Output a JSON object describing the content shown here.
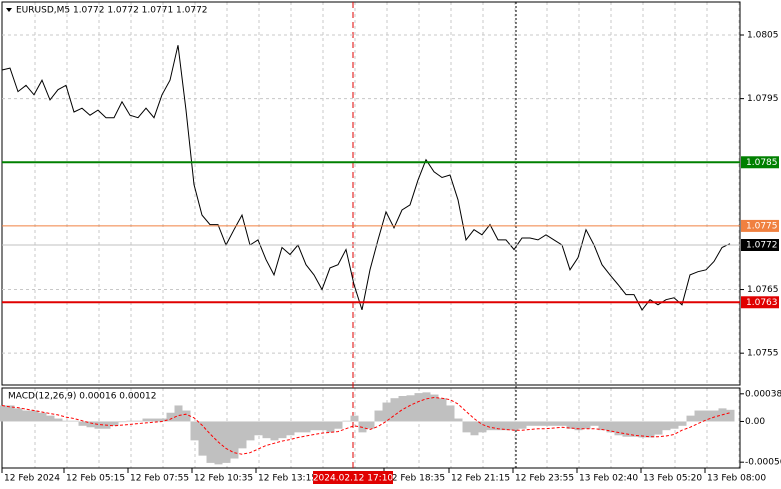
{
  "chart_data": [
    {
      "type": "line",
      "title": "EURUSD,M5  1.0772 1.0772 1.0771 1.0772",
      "color": "#000000",
      "values": [
        1.07995,
        1.07998,
        1.07961,
        1.07971,
        1.07956,
        1.07979,
        1.07948,
        1.07964,
        1.07971,
        1.07929,
        1.07935,
        1.07924,
        1.07932,
        1.0792,
        1.0792,
        1.07945,
        1.07924,
        1.0792,
        1.07935,
        1.0792,
        1.07956,
        1.07979,
        1.08034,
        1.07932,
        1.07815,
        1.07767,
        1.07752,
        1.07752,
        1.0772,
        1.07744,
        1.07767,
        1.0772,
        1.07728,
        1.07697,
        1.07673,
        1.07716,
        1.07705,
        1.0772,
        1.07689,
        1.07673,
        1.0765,
        1.07684,
        1.07689,
        1.07713,
        1.07658,
        1.07618,
        1.07681,
        1.07728,
        1.07772,
        1.07747,
        1.07775,
        1.07783,
        1.07822,
        1.07854,
        1.07835,
        1.07826,
        1.0783,
        1.07791,
        1.07728,
        1.07744,
        1.07736,
        1.07752,
        1.07728,
        1.07728,
        1.07713,
        1.07731,
        1.07731,
        1.07728,
        1.07736,
        1.07728,
        1.0772,
        1.07681,
        1.077,
        1.07744,
        1.0772,
        1.07689,
        1.07673,
        1.07658,
        1.07642,
        1.07642,
        1.07618,
        1.07634,
        1.07626,
        1.07634,
        1.07637,
        1.07626,
        1.07673,
        1.07678,
        1.07681,
        1.07694,
        1.07716,
        1.07722
      ],
      "ylim": [
        1.075,
        1.08105
      ],
      "yticks": [
        1.0805,
        1.0795,
        1.0765,
        1.0755
      ],
      "grid": true,
      "levels": [
        {
          "value": 1.0785,
          "color": "#008000"
        },
        {
          "value": 1.0775,
          "color": "#f08040"
        },
        {
          "value": 1.0763,
          "color": "#e00000"
        }
      ],
      "last_price": 1.0772,
      "x_labels": [
        "12 Feb 2024",
        "12 Feb 05:15",
        "12 Feb 07:55",
        "12 Feb 10:35",
        "12 Feb 13:15",
        "12 Feb 18:35",
        "12 Feb 21:15",
        "12 Feb 23:55",
        "13 Feb 02:40",
        "13 Feb 05:20",
        "13 Feb 08:00"
      ],
      "crosshair_label": "2024.02.12 17:10"
    },
    {
      "type": "macd",
      "title": "MACD(12,26,9) 0.00016 0.00012",
      "series": [
        {
          "name": "MACD",
          "color": "#c0c0c0",
          "values": [
            0.00022,
            0.00022,
            0.00018,
            0.00015,
            0.00015,
            0.00012,
            8e-05,
            4e-05,
            1e-05,
            1e-05,
            -6e-05,
            -8e-05,
            -0.0001,
            -0.0001,
            -6e-05,
            -1e-05,
            1e-05,
            1e-05,
            4e-05,
            4e-05,
            4e-05,
            0.00012,
            0.00022,
            0.00015,
            -0.00026,
            -0.00047,
            -0.00057,
            -0.00059,
            -0.00057,
            -0.00051,
            -0.00037,
            -0.00026,
            -0.00019,
            -0.00023,
            -0.00026,
            -0.00023,
            -0.00019,
            -0.00015,
            -0.00015,
            -0.00012,
            -0.00012,
            -0.00015,
            -0.0001,
            1e-05,
            8e-05,
            -0.00015,
            -0.0001,
            0.00015,
            0.00026,
            0.00032,
            0.00035,
            0.00036,
            0.00039,
            0.0004,
            0.00037,
            0.00032,
            0.00022,
            4e-05,
            -0.00015,
            -0.00019,
            -0.00015,
            -0.00012,
            -0.00012,
            -0.00012,
            -0.00012,
            -0.0001,
            -6e-05,
            -6e-05,
            -6e-05,
            -6e-05,
            -6e-05,
            -0.0001,
            -0.00012,
            -0.0001,
            -6e-05,
            -0.00012,
            -0.00015,
            -0.00019,
            -0.00021,
            -0.00021,
            -0.00022,
            -0.00022,
            -0.00018,
            -0.00012,
            -0.0001,
            -6e-05,
            8e-05,
            0.00015,
            0.00015,
            0.00015,
            0.00018,
            0.00016
          ]
        },
        {
          "name": "Signal",
          "color": "#ff0000",
          "values": [
            0.00022,
            0.0002,
            0.00019,
            0.00017,
            0.00015,
            0.00013,
            0.00011,
            9e-05,
            6e-05,
            4e-05,
            1e-05,
            -2e-05,
            -4e-05,
            -5e-05,
            -6e-05,
            -5e-05,
            -4e-05,
            -3e-05,
            -2e-05,
            -1e-05,
            0,
            3e-05,
            8e-05,
            0.0001,
            5e-05,
            -5e-05,
            -0.00017,
            -0.00028,
            -0.00037,
            -0.00043,
            -0.00045,
            -0.00043,
            -0.00038,
            -0.00033,
            -0.0003,
            -0.00027,
            -0.00025,
            -0.00022,
            -0.0002,
            -0.00018,
            -0.00016,
            -0.00015,
            -0.00014,
            -0.0001,
            -6e-05,
            -8e-05,
            -0.00011,
            -7e-05,
            0,
            8e-05,
            0.00016,
            0.00022,
            0.00027,
            0.00031,
            0.00033,
            0.00032,
            0.0003,
            0.00024,
            0.00014,
            4e-05,
            -4e-05,
            -8e-05,
            -0.0001,
            -0.00011,
            -0.00012,
            -0.00012,
            -0.00011,
            -0.0001,
            -0.0001,
            -9e-05,
            -8e-05,
            -9e-05,
            -0.0001,
            -0.0001,
            -0.0001,
            -0.00011,
            -0.00013,
            -0.00015,
            -0.00017,
            -0.00019,
            -0.0002,
            -0.00021,
            -0.00021,
            -0.0002,
            -0.00018,
            -0.00012,
            -8e-05,
            -3e-05,
            2e-05,
            6e-05,
            9e-05,
            0.00012
          ]
        }
      ],
      "ylim": [
        -0.00064,
        0.00046
      ],
      "yticks": [
        0.00038,
        {
          "value": 0,
          "label": "0.00"
        },
        -0.00056
      ]
    }
  ]
}
